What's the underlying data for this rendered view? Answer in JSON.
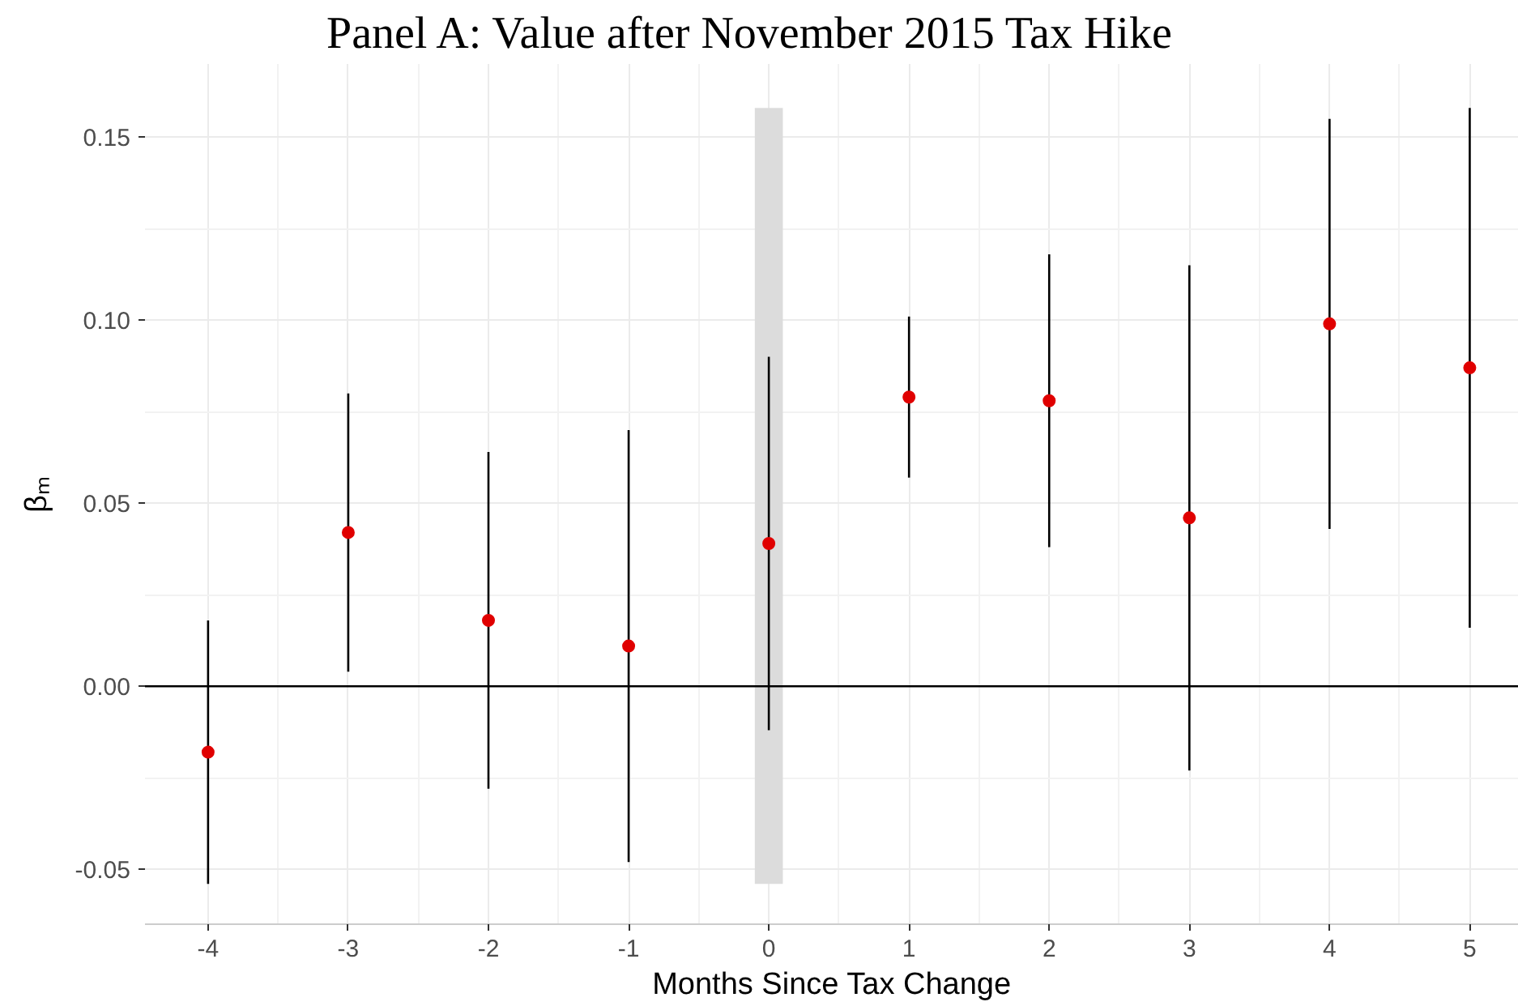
{
  "chart_data": {
    "type": "scatter",
    "title": "Panel A: Value after November 2015 Tax Hike",
    "xlabel": "Months Since Tax Change",
    "ylabel": "βₘ",
    "x": [
      -4,
      -3,
      -2,
      -1,
      0,
      1,
      2,
      3,
      4,
      5
    ],
    "values": [
      -0.018,
      0.042,
      0.018,
      0.011,
      0.039,
      0.079,
      0.078,
      0.046,
      0.099,
      0.087
    ],
    "errors": [
      0.036,
      0.038,
      0.046,
      0.059,
      0.051,
      0.022,
      0.04,
      0.069,
      0.056,
      0.071
    ],
    "color": "#e00000",
    "marker": "circle",
    "xlim": [
      -4.45,
      5.35
    ],
    "xticks": [
      -4,
      -3,
      -2,
      -1,
      0,
      1,
      2,
      3,
      4,
      5
    ],
    "ylim": [
      -0.065,
      0.17
    ],
    "yticks": [
      {
        "value": -0.05,
        "label": "-0.05"
      },
      {
        "value": 0,
        "label": "0.00"
      },
      {
        "value": 0.05,
        "label": "0.05"
      },
      {
        "value": 0.1,
        "label": "0.10"
      },
      {
        "value": 0.15,
        "label": "0.15"
      }
    ],
    "ref_lines": [
      {
        "axis": "y",
        "value": 0,
        "color": "#000000"
      }
    ],
    "bands": [
      {
        "axis": "x",
        "from": -0.1,
        "to": 0.1,
        "color": "#dcdcdc"
      }
    ],
    "grid": true
  }
}
